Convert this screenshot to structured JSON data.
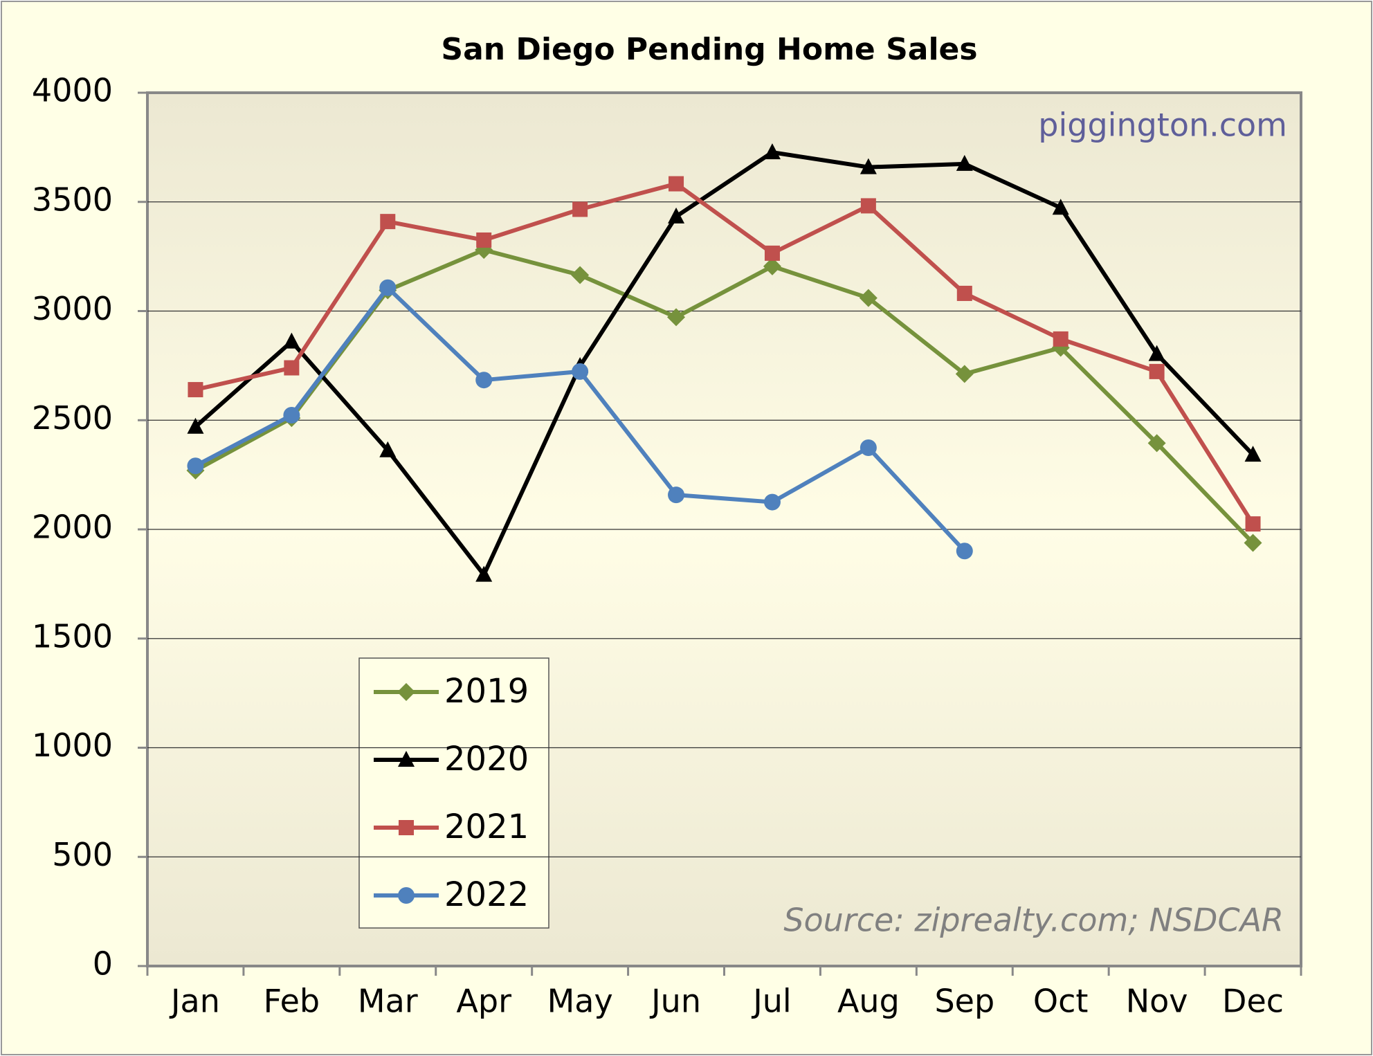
{
  "chart_data": {
    "type": "line",
    "title": "San Diego Pending Home Sales",
    "annotations": [
      "piggington.com",
      "Source: ziprealty.com; NSDCAR"
    ],
    "categories": [
      "Jan",
      "Feb",
      "Mar",
      "Apr",
      "May",
      "Jun",
      "Jul",
      "Aug",
      "Sep",
      "Oct",
      "Nov",
      "Dec"
    ],
    "series": [
      {
        "name": "2019",
        "color": "#76923c",
        "marker": "diamond",
        "values": [
          2270,
          2510,
          3095,
          3280,
          3165,
          2972,
          3205,
          3060,
          2712,
          2832,
          2395,
          1938
        ]
      },
      {
        "name": "2020",
        "color": "#000000",
        "marker": "triangle",
        "values": [
          2470,
          2860,
          2362,
          1792,
          2748,
          3433,
          3727,
          3659,
          3674,
          3473,
          2803,
          2342
        ]
      },
      {
        "name": "2021",
        "color": "#c0504d",
        "marker": "square",
        "values": [
          2640,
          2740,
          3410,
          3325,
          3466,
          3583,
          3265,
          3482,
          3081,
          2872,
          2723,
          2025
        ]
      },
      {
        "name": "2022",
        "color": "#4f81bd",
        "marker": "circle",
        "values": [
          2291,
          2523,
          3107,
          2684,
          2723,
          2158,
          2125,
          2374,
          1901,
          null,
          null,
          null
        ]
      }
    ],
    "ylim": [
      0,
      4000
    ],
    "yticks": [
      0,
      500,
      1000,
      1500,
      2000,
      2500,
      3000,
      3500,
      4000
    ],
    "grid": true
  }
}
